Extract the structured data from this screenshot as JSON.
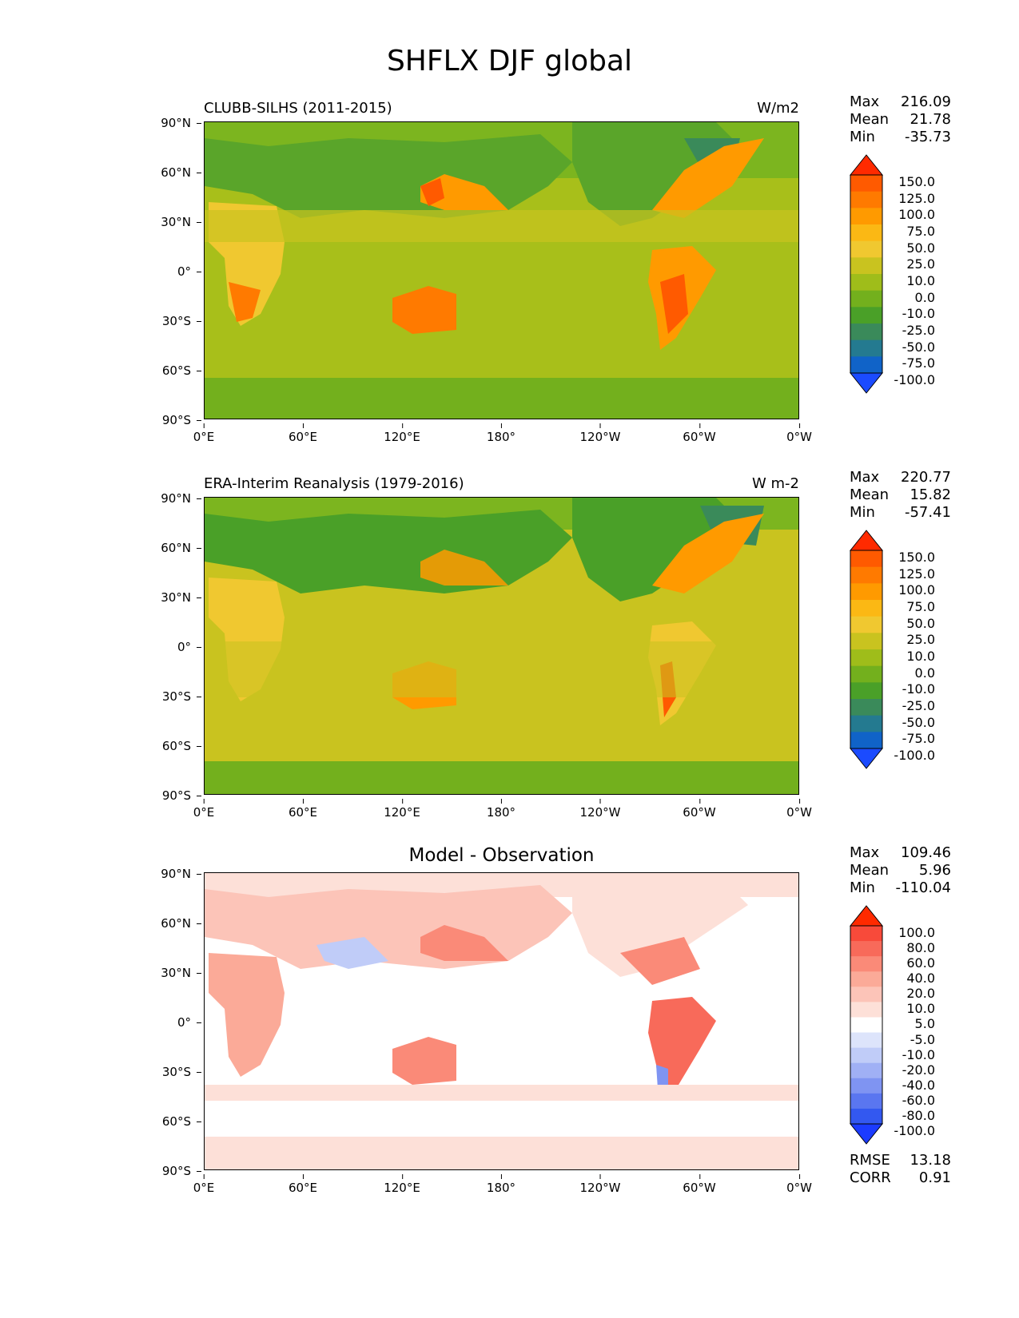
{
  "figure_title": "SHFLX DJF global",
  "x_ticks": [
    "0°E",
    "60°E",
    "120°E",
    "180°",
    "120°W",
    "60°W",
    "0°W"
  ],
  "y_ticks": [
    "90°N",
    "60°N",
    "30°N",
    "0°",
    "30°S",
    "60°S",
    "90°S"
  ],
  "panels": [
    {
      "title": "CLUBB-SILHS (2011-2015)",
      "units": "W/m2",
      "stats": {
        "max_label": "Max",
        "max": "216.09",
        "mean_label": "Mean",
        "mean": "21.78",
        "min_label": "Min",
        "min": "-35.73"
      },
      "colorbar_levels": [
        "150.0",
        "125.0",
        "100.0",
        "75.0",
        "50.0",
        "25.0",
        "10.0",
        "0.0",
        "-10.0",
        "-25.0",
        "-50.0",
        "-75.0",
        "-100.0"
      ],
      "colors": [
        "#ff2a00",
        "#ff5a00",
        "#ff7a00",
        "#ff9a00",
        "#fbb814",
        "#f0c830",
        "#c9c31f",
        "#9fbd1a",
        "#73b01d",
        "#4aa028",
        "#3a8a5a",
        "#247a90",
        "#1063c8",
        "#1b4bff"
      ]
    },
    {
      "title": "ERA-Interim Reanalysis (1979-2016)",
      "units": "W m-2",
      "stats": {
        "max_label": "Max",
        "max": "220.77",
        "mean_label": "Mean",
        "mean": "15.82",
        "min_label": "Min",
        "min": "-57.41"
      },
      "colorbar_levels": [
        "150.0",
        "125.0",
        "100.0",
        "75.0",
        "50.0",
        "25.0",
        "10.0",
        "0.0",
        "-10.0",
        "-25.0",
        "-50.0",
        "-75.0",
        "-100.0"
      ],
      "colors": [
        "#ff2a00",
        "#ff5a00",
        "#ff7a00",
        "#ff9a00",
        "#fbb814",
        "#f0c830",
        "#c9c31f",
        "#9fbd1a",
        "#73b01d",
        "#4aa028",
        "#3a8a5a",
        "#247a90",
        "#1063c8",
        "#1b4bff"
      ]
    },
    {
      "title": "Model - Observation",
      "units": "",
      "stats": {
        "max_label": "Max",
        "max": "109.46",
        "mean_label": "Mean",
        "mean": "5.96",
        "min_label": "Min",
        "min": "-110.04"
      },
      "colorbar_levels": [
        "100.0",
        "80.0",
        "60.0",
        "40.0",
        "20.0",
        "10.0",
        "5.0",
        "-5.0",
        "-10.0",
        "-20.0",
        "-40.0",
        "-60.0",
        "-80.0",
        "-100.0"
      ],
      "colors": [
        "#ff2a00",
        "#f84a3a",
        "#f86a5a",
        "#fa8a78",
        "#fbaa98",
        "#fcc4b8",
        "#fde0d8",
        "#ffffff",
        "#dde4fb",
        "#c0ccf8",
        "#a0b0f5",
        "#7f94f2",
        "#5a76f0",
        "#3358f0",
        "#1b3bff"
      ],
      "rmse_label": "RMSE",
      "rmse": "13.18",
      "corr_label": "CORR",
      "corr": "0.91"
    }
  ]
}
